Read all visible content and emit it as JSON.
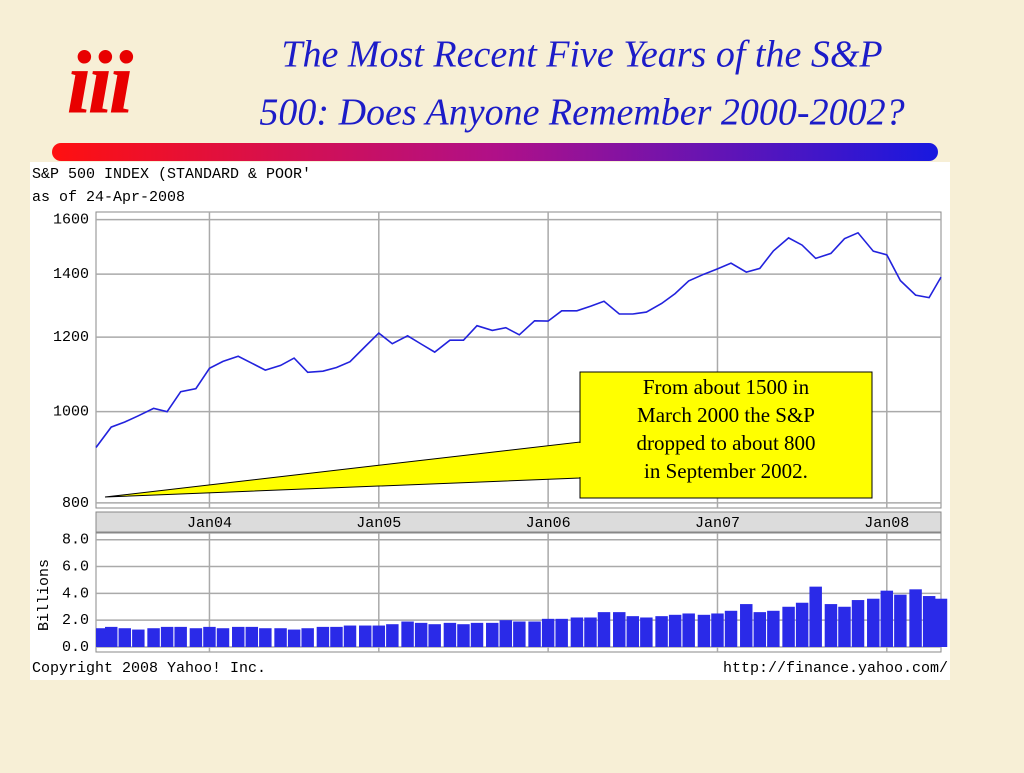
{
  "slide": {
    "logo": "iii",
    "title": [
      "The Most Recent Five Years of the S&P",
      "500: Does Anyone Remember 2000-2002?"
    ],
    "callout": [
      "From about 1500 in",
      "March 2000 the S&P",
      "dropped to about 800",
      "in September 2002."
    ],
    "footer_left": "Copyright 2008 Yahoo! Inc.",
    "footer_right": "http://finance.yahoo.com/"
  },
  "chart_data": [
    {
      "type": "line",
      "title": "S&P 500 INDEX (STANDARD & POOR'",
      "subtitle": "as of 24-Apr-2008",
      "log_scale": true,
      "grid": true,
      "color": "#2222dd",
      "x": [
        2003.33,
        2003.42,
        2003.5,
        2003.58,
        2003.67,
        2003.75,
        2003.83,
        2003.92,
        2004.0,
        2004.08,
        2004.17,
        2004.25,
        2004.33,
        2004.42,
        2004.5,
        2004.58,
        2004.67,
        2004.75,
        2004.83,
        2004.92,
        2005.0,
        2005.08,
        2005.17,
        2005.25,
        2005.33,
        2005.42,
        2005.5,
        2005.58,
        2005.67,
        2005.75,
        2005.83,
        2005.92,
        2006.0,
        2006.08,
        2006.17,
        2006.25,
        2006.33,
        2006.42,
        2006.5,
        2006.58,
        2006.67,
        2006.75,
        2006.83,
        2006.92,
        2007.0,
        2007.08,
        2007.17,
        2007.25,
        2007.33,
        2007.42,
        2007.5,
        2007.58,
        2007.67,
        2007.75,
        2007.83,
        2007.92,
        2008.0,
        2008.08,
        2008.17,
        2008.25,
        2008.32
      ],
      "values": [
        916,
        963,
        975,
        990,
        1008,
        1000,
        1050,
        1058,
        1112,
        1131,
        1145,
        1126,
        1107,
        1120,
        1140,
        1101,
        1104,
        1114,
        1130,
        1173,
        1212,
        1181,
        1204,
        1180,
        1157,
        1191,
        1191,
        1234,
        1220,
        1228,
        1207,
        1249,
        1248,
        1280,
        1280,
        1294,
        1310,
        1270,
        1270,
        1276,
        1303,
        1335,
        1377,
        1400,
        1418,
        1438,
        1407,
        1420,
        1482,
        1530,
        1503,
        1455,
        1473,
        1527,
        1549,
        1481,
        1468,
        1378,
        1330,
        1322,
        1390
      ],
      "xlim": [
        2003.33,
        2008.32
      ],
      "xticks": [
        {
          "value": 2004,
          "label": "Jan04"
        },
        {
          "value": 2005,
          "label": "Jan05"
        },
        {
          "value": 2006,
          "label": "Jan06"
        },
        {
          "value": 2007,
          "label": "Jan07"
        },
        {
          "value": 2008,
          "label": "Jan08"
        }
      ],
      "ylim": [
        790,
        1630
      ],
      "yticks": [
        800,
        1000,
        1200,
        1400,
        1600
      ]
    },
    {
      "type": "bar",
      "ylabel": "Billions",
      "grid": true,
      "color": "#2a2ae8",
      "x": [
        2003.33,
        2003.42,
        2003.5,
        2003.58,
        2003.67,
        2003.75,
        2003.83,
        2003.92,
        2004.0,
        2004.08,
        2004.17,
        2004.25,
        2004.33,
        2004.42,
        2004.5,
        2004.58,
        2004.67,
        2004.75,
        2004.83,
        2004.92,
        2005.0,
        2005.08,
        2005.17,
        2005.25,
        2005.33,
        2005.42,
        2005.5,
        2005.58,
        2005.67,
        2005.75,
        2005.83,
        2005.92,
        2006.0,
        2006.08,
        2006.17,
        2006.25,
        2006.33,
        2006.42,
        2006.5,
        2006.58,
        2006.67,
        2006.75,
        2006.83,
        2006.92,
        2007.0,
        2007.08,
        2007.17,
        2007.25,
        2007.33,
        2007.42,
        2007.5,
        2007.58,
        2007.67,
        2007.75,
        2007.83,
        2007.92,
        2008.0,
        2008.08,
        2008.17,
        2008.25,
        2008.32
      ],
      "values": [
        1.4,
        1.5,
        1.4,
        1.3,
        1.4,
        1.5,
        1.5,
        1.4,
        1.5,
        1.4,
        1.5,
        1.5,
        1.4,
        1.4,
        1.3,
        1.4,
        1.5,
        1.5,
        1.6,
        1.6,
        1.6,
        1.7,
        1.9,
        1.8,
        1.7,
        1.8,
        1.7,
        1.8,
        1.8,
        2.0,
        1.9,
        1.9,
        2.1,
        2.1,
        2.2,
        2.2,
        2.6,
        2.6,
        2.3,
        2.2,
        2.3,
        2.4,
        2.5,
        2.4,
        2.5,
        2.7,
        3.2,
        2.6,
        2.7,
        3.0,
        3.3,
        4.5,
        3.2,
        3.0,
        3.5,
        3.6,
        4.2,
        3.9,
        4.3,
        3.8,
        3.6
      ],
      "xlim": [
        2003.33,
        2008.32
      ],
      "ylim": [
        0,
        8.5
      ],
      "yticks": [
        {
          "value": 0,
          "label": "0.0"
        },
        {
          "value": 2,
          "label": "2.0"
        },
        {
          "value": 4,
          "label": "4.0"
        },
        {
          "value": 6,
          "label": "6.0"
        },
        {
          "value": 8,
          "label": "8.0"
        }
      ]
    }
  ]
}
